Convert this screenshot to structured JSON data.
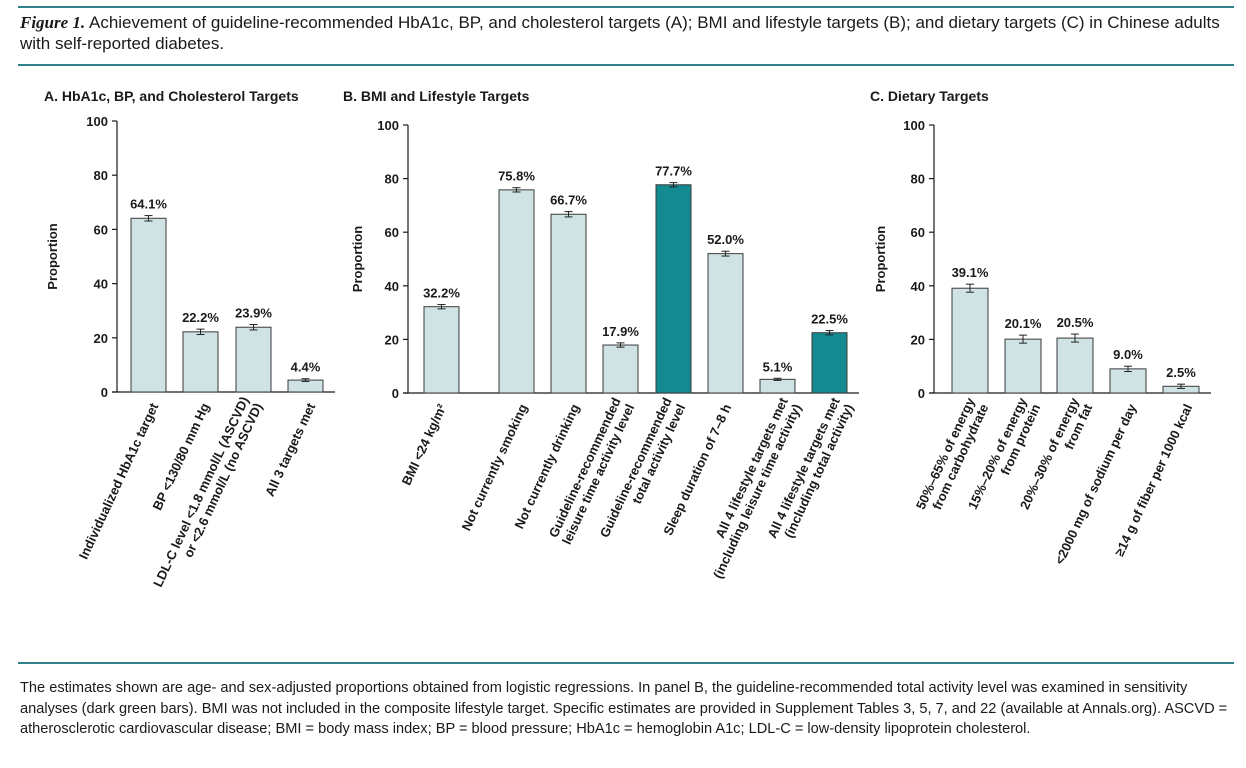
{
  "caption": {
    "figure_label": "Figure 1.",
    "text": "Achievement of guideline-recommended HbA1c, BP, and cholesterol targets (A); BMI and lifestyle targets (B); and dietary targets (C) in Chinese adults with self-reported diabetes."
  },
  "footnote": "The estimates shown are age- and sex-adjusted proportions obtained from logistic regressions. In panel B, the guideline-recommended total activity level was examined in sensitivity analyses (dark green bars). BMI was not included in the composite lifestyle target. Specific estimates are provided in Supplement Tables 3, 5, 7, and 22 (available at Annals.org). ASCVD = atherosclerotic cardiovascular disease; BMI = body mass index; BP = blood pressure; HbA1c = hemoglobin A1c; LDL-C = low-density lipoprotein cholesterol.",
  "colors": {
    "light_bar": "#cfe3e4",
    "dark_bar": "#138a90",
    "rule": "#2e7f8a",
    "axis": "#1a1a1a"
  },
  "chart_data": [
    {
      "type": "bar",
      "title": "A. HbA1c, BP, and Cholesterol Targets",
      "ylabel": "Proportion",
      "ylim": [
        0,
        100
      ],
      "yticks": [
        0,
        20,
        40,
        60,
        80,
        100
      ],
      "categories": [
        [
          "Individualized HbA1c target"
        ],
        [
          "BP <130/80 mm Hg"
        ],
        [
          "LDL-C level <1.8 mmol/L (ASCVD)",
          "or <2.6 mmol/L (no ASCVD)"
        ],
        [
          "All 3 targets met"
        ]
      ],
      "values": [
        64.1,
        22.2,
        23.9,
        4.4
      ],
      "value_labels": [
        "64.1%",
        "22.2%",
        "23.9%",
        "4.4%"
      ],
      "errors": [
        1.0,
        1.0,
        1.0,
        0.5
      ],
      "highlight": [
        false,
        false,
        false,
        false
      ]
    },
    {
      "type": "bar",
      "title": "B. BMI and Lifestyle Targets",
      "ylabel": "Proportion",
      "ylim": [
        0,
        100
      ],
      "yticks": [
        0,
        20,
        40,
        60,
        80,
        100
      ],
      "categories": [
        [
          "BMI <24 kg/m²"
        ],
        [
          "Not currently smoking"
        ],
        [
          "Not currently drinking"
        ],
        [
          "Guideline-recommended",
          "leisure time activity level"
        ],
        [
          "Guideline-recommended",
          "total activity level"
        ],
        [
          "Sleep duration of 7–8 h"
        ],
        [
          "All 4 lifestyle targets met",
          "(including leisure time activity)"
        ],
        [
          "All 4 lifestyle targets met",
          "(including total activity)"
        ]
      ],
      "values": [
        32.2,
        75.8,
        66.7,
        17.9,
        77.7,
        52.0,
        5.1,
        22.5
      ],
      "value_labels": [
        "32.2%",
        "75.8%",
        "66.7%",
        "17.9%",
        "77.7%",
        "52.0%",
        "5.1%",
        "22.5%"
      ],
      "errors": [
        0.8,
        0.8,
        1.0,
        0.8,
        0.8,
        0.9,
        0.4,
        0.8
      ],
      "highlight": [
        false,
        false,
        false,
        false,
        true,
        false,
        false,
        true
      ]
    },
    {
      "type": "bar",
      "title": "C. Dietary Targets",
      "ylabel": "Proportion",
      "ylim": [
        0,
        100
      ],
      "yticks": [
        0,
        20,
        40,
        60,
        80,
        100
      ],
      "categories": [
        [
          "50%–65% of energy",
          "from carbohydrate"
        ],
        [
          "15%–20% of energy",
          "from protein"
        ],
        [
          "20%–30% of energy",
          "from fat"
        ],
        [
          "<2000 mg of sodium per day"
        ],
        [
          "≥14 g of fiber per 1000 kcal"
        ]
      ],
      "values": [
        39.1,
        20.1,
        20.5,
        9.0,
        2.5
      ],
      "value_labels": [
        "39.1%",
        "20.1%",
        "20.5%",
        "9.0%",
        "2.5%"
      ],
      "errors": [
        1.5,
        1.5,
        1.5,
        1.0,
        0.8
      ],
      "highlight": [
        false,
        false,
        false,
        false,
        false
      ]
    }
  ]
}
